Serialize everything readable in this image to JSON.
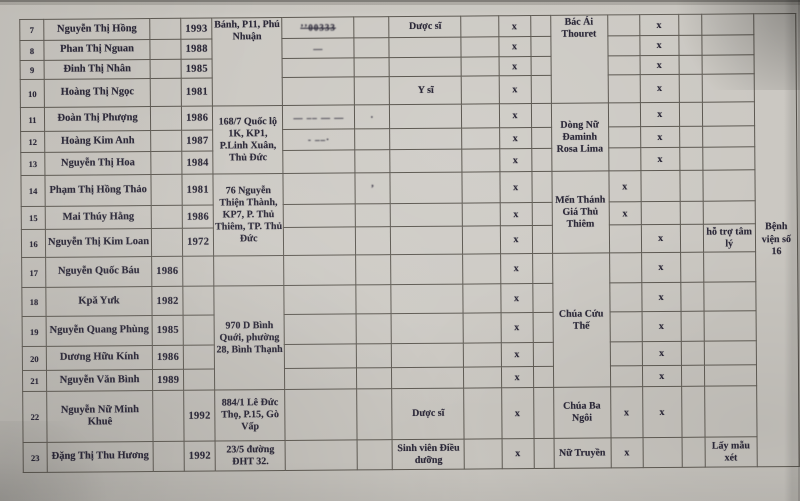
{
  "colors": {
    "paper": "#cac7c1",
    "ink": "#2b2838",
    "line": "#5d5952"
  },
  "table": {
    "columns": [
      {
        "key": "num",
        "w": 24
      },
      {
        "key": "name",
        "w": 106
      },
      {
        "key": "year1",
        "w": 31
      },
      {
        "key": "year2",
        "w": 31
      },
      {
        "key": "address",
        "w": 70,
        "merged": true
      },
      {
        "key": "redacted",
        "w": 72
      },
      {
        "key": "narrow1",
        "w": 35
      },
      {
        "key": "occupation",
        "w": 72
      },
      {
        "key": "narrow2",
        "w": 37
      },
      {
        "key": "x1",
        "w": 32
      },
      {
        "key": "narrow3",
        "w": 20
      },
      {
        "key": "org",
        "w": 57,
        "merged": true
      },
      {
        "key": "x2a",
        "w": 32
      },
      {
        "key": "x2b",
        "w": 39
      },
      {
        "key": "narrow4",
        "w": 23
      },
      {
        "key": "notes",
        "w": 52
      },
      {
        "key": "last",
        "w": 42,
        "merged": true
      }
    ],
    "rows": [
      {
        "num": "7",
        "h": 21,
        "name": "Nguyễn Thị Hồng",
        "year2": "1993",
        "redacted": "ʼʼ00333",
        "x1": "x",
        "x2b": "x",
        "occupation": "Dược sĩ"
      },
      {
        "num": "8",
        "h": 20,
        "name": "Phan Thị Nguan",
        "year2": "1988",
        "redacted": "—",
        "x1": "x",
        "x2b": "x"
      },
      {
        "num": "9",
        "h": 19,
        "name": "Đinh Thị Nhân",
        "year2": "1985",
        "x1": "x",
        "x2b": "x"
      },
      {
        "num": "10",
        "h": 28,
        "name": "Hoàng Thị Ngọc",
        "year2": "1981",
        "occupation": "Y sĩ",
        "x1": "x",
        "x2b": "x"
      },
      {
        "num": "11",
        "h": 24,
        "name": "Đoàn Thị Phượng",
        "year2": "1986",
        "redacted": "— –– — —",
        "narrow1": "·",
        "x1": "x",
        "x2b": "x"
      },
      {
        "num": "12",
        "h": 21,
        "name": "Hoàng Kim Anh",
        "year2": "1987",
        "redacted": "‐ ––·",
        "x1": "x",
        "x2b": "x"
      },
      {
        "num": "13",
        "h": 23,
        "name": "Nguyễn Thị Hoa",
        "year2": "1984",
        "x1": "x",
        "x2b": "x"
      },
      {
        "num": "14",
        "h": 31,
        "name": "Phạm Thị Hồng Thảo",
        "year2": "1981",
        "narrow1": "’",
        "x1": "x",
        "x2a": "x"
      },
      {
        "num": "15",
        "h": 23,
        "name": "Mai Thúy Hằng",
        "year2": "1986",
        "x1": "x",
        "x2a": "x"
      },
      {
        "num": "16",
        "h": 28,
        "name": "Nguyễn Thị Kim Loan",
        "year2": "1972",
        "x1": "x",
        "x2b": "x",
        "notes": "hỗ trợ tâm lý"
      },
      {
        "num": "17",
        "h": 30,
        "name": "Nguyễn Quốc Báu",
        "year1": "1986",
        "x1": "x",
        "x2b": "x"
      },
      {
        "num": "18",
        "h": 29,
        "name": "Kpă Yưk",
        "year1": "1982",
        "x1": "x",
        "x2b": "x"
      },
      {
        "num": "19",
        "h": 30,
        "name": "Nguyễn Quang Phùng",
        "year1": "1985",
        "x1": "x",
        "x2b": "x"
      },
      {
        "num": "20",
        "h": 24,
        "name": "Dương Hữu Kính",
        "year1": "1986",
        "x1": "x",
        "x2b": "x"
      },
      {
        "num": "21",
        "h": 21,
        "name": "Nguyễn Văn Bình",
        "year1": "1989",
        "x1": "x",
        "x2b": "x"
      },
      {
        "num": "22",
        "h": 51,
        "name": "Nguyễn Nữ Minh Khuê",
        "year2": "1992",
        "occupation": "Dược sĩ",
        "x1": "x",
        "x2a": "x",
        "x2b": "x"
      },
      {
        "num": "23",
        "h": 30,
        "name": "Đặng Thị Thu Hương",
        "year2": "1992",
        "occupation": "Sinh viên Điều dưỡng",
        "x1": "x",
        "x2a": "x",
        "notes": "Lấy mẫu xét"
      }
    ],
    "merges": {
      "address": [
        {
          "row": 7,
          "span": 4,
          "text": "Bánh, P11, Phú Nhuận",
          "valign": "top"
        },
        {
          "row": 11,
          "span": 3,
          "text": "168/7 Quốc lộ 1K, KP1, P.Linh Xuân, Thủ Đức"
        },
        {
          "row": 14,
          "span": 3,
          "text": "76 Nguyễn Thiện Thành, KP7, P. Thủ Thiêm, TP. Thủ Đức"
        },
        {
          "row": 18,
          "span": 4,
          "text": "970 D Bình Quới, phường 28, Bình Thạnh"
        },
        {
          "row": 22,
          "span": 1,
          "text": "884/1 Lê Đức Thọ, P.15, Gò Vấp"
        },
        {
          "row": 23,
          "span": 1,
          "text": "23/5 đường ĐHT 32."
        }
      ],
      "org": [
        {
          "row": 7,
          "span": 4,
          "text": "Bác Ái Thouret",
          "valign": "top"
        },
        {
          "row": 11,
          "span": 3,
          "text": "Dòng Nữ Đaminh Rosa Lima"
        },
        {
          "row": 14,
          "span": 3,
          "text": "Mến Thánh Giá Thủ Thiêm"
        },
        {
          "row": 17,
          "span": 5,
          "text": "Chúa Cứu Thế"
        },
        {
          "row": 22,
          "span": 1,
          "text": "Chúa Ba Ngôi"
        },
        {
          "row": 23,
          "span": 1,
          "text": "Nữ Truyền"
        }
      ],
      "last": [
        {
          "row": 7,
          "span": 17,
          "text": "Bệnh viện số 16"
        }
      ]
    }
  }
}
